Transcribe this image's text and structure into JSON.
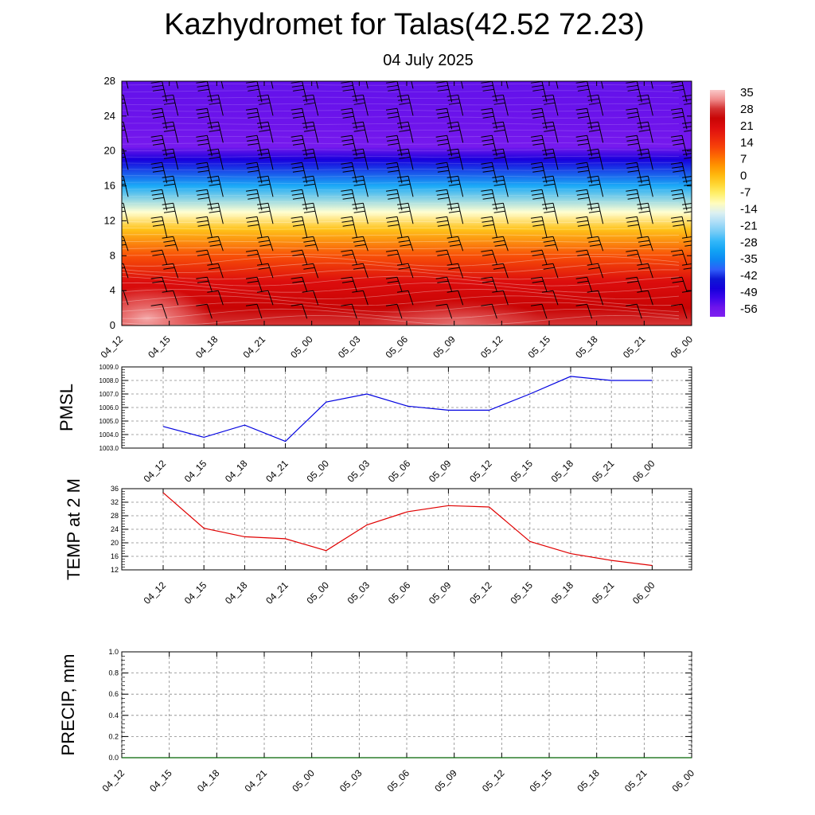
{
  "header": {
    "title": "Kazhydromet for Talas(42.52 72.23)",
    "subtitle": "04 July 2025"
  },
  "chart_data": [
    {
      "id": "cross_section",
      "type": "heatmap",
      "x_tick_labels": [
        "04_12",
        "04_15",
        "04_18",
        "04_21",
        "05_00",
        "05_03",
        "05_06",
        "05_09",
        "05_12",
        "05_15",
        "05_18",
        "05_21",
        "06_00"
      ],
      "y_ticks": [
        0,
        4,
        8,
        12,
        16,
        20,
        24,
        28
      ],
      "ylim": [
        0,
        28
      ],
      "colorbar": {
        "labels": [
          "35",
          "28",
          "21",
          "14",
          "7",
          "0",
          "-7",
          "-14",
          "-21",
          "-28",
          "-35",
          "-42",
          "-49",
          "-56"
        ],
        "range": [
          -60,
          38
        ]
      },
      "temperature_profile": [
        {
          "level": 0,
          "value": 30
        },
        {
          "level": 2,
          "value": 26
        },
        {
          "level": 5,
          "value": 22
        },
        {
          "level": 8,
          "value": 12
        },
        {
          "level": 11,
          "value": 0
        },
        {
          "level": 13,
          "value": -12
        },
        {
          "level": 16,
          "value": -30
        },
        {
          "level": 19,
          "value": -48
        },
        {
          "level": 20.5,
          "value": -58
        },
        {
          "level": 23,
          "value": -56
        },
        {
          "level": 28,
          "value": -55
        }
      ],
      "colors": {
        "warmest": "#f08080",
        "hot": "#e02020",
        "cold": "#0000e0",
        "upper": "#8020f0"
      }
    },
    {
      "id": "pmsl",
      "type": "line",
      "ylabel": "PMSL",
      "x": [
        "04_12",
        "04_15",
        "04_18",
        "04_21",
        "05_00",
        "05_03",
        "05_06",
        "05_09",
        "05_12",
        "05_15",
        "05_18",
        "05_21",
        "06_00"
      ],
      "values": [
        1004.6,
        1003.8,
        1004.7,
        1003.5,
        1006.4,
        1007.0,
        1006.1,
        1005.8,
        1005.8,
        1007.0,
        1008.3,
        1008.0,
        1008.0
      ],
      "ylim": [
        1003.0,
        1009.0
      ],
      "y_ticks": [
        1003.0,
        1004.0,
        1005.0,
        1006.0,
        1007.0,
        1008.0,
        1009.0
      ],
      "y_tick_labels": [
        "1003.0",
        "1004.0",
        "1005.0",
        "1006.0",
        "1007.0",
        "1008.0",
        "1009.0"
      ],
      "color": "#0000e0",
      "grid": true
    },
    {
      "id": "temp2m",
      "type": "line",
      "ylabel": "TEMP at 2 M",
      "x": [
        "04_12",
        "04_15",
        "04_18",
        "04_21",
        "05_00",
        "05_03",
        "05_06",
        "05_09",
        "05_12",
        "05_15",
        "05_18",
        "05_21",
        "06_00"
      ],
      "values": [
        34.8,
        24.3,
        21.8,
        21.2,
        17.7,
        25.3,
        29.2,
        31.0,
        30.6,
        20.4,
        16.8,
        14.8,
        13.3
      ],
      "ylim": [
        12,
        36
      ],
      "y_ticks": [
        12,
        16,
        20,
        24,
        28,
        32,
        36
      ],
      "y_tick_labels": [
        "12",
        "16",
        "20",
        "24",
        "28",
        "32",
        "36"
      ],
      "color": "#e00000",
      "grid": true
    },
    {
      "id": "precip",
      "type": "line",
      "ylabel": "PRECIP, mm",
      "x_tick_labels": [
        "04_12",
        "04_15",
        "04_18",
        "04_21",
        "05_00",
        "05_03",
        "05_06",
        "05_09",
        "05_12",
        "05_15",
        "05_18",
        "05_21",
        "06_00"
      ],
      "values": [
        0,
        0,
        0,
        0,
        0,
        0,
        0,
        0,
        0,
        0,
        0,
        0,
        0
      ],
      "ylim": [
        0,
        1
      ],
      "y_ticks": [
        0,
        0.2,
        0.4,
        0.6,
        0.8,
        1.0
      ],
      "y_tick_labels": [
        "0.0",
        "0.2",
        "0.4",
        "0.6",
        "0.8",
        "1.0"
      ],
      "color": "#006400",
      "grid": true
    }
  ]
}
